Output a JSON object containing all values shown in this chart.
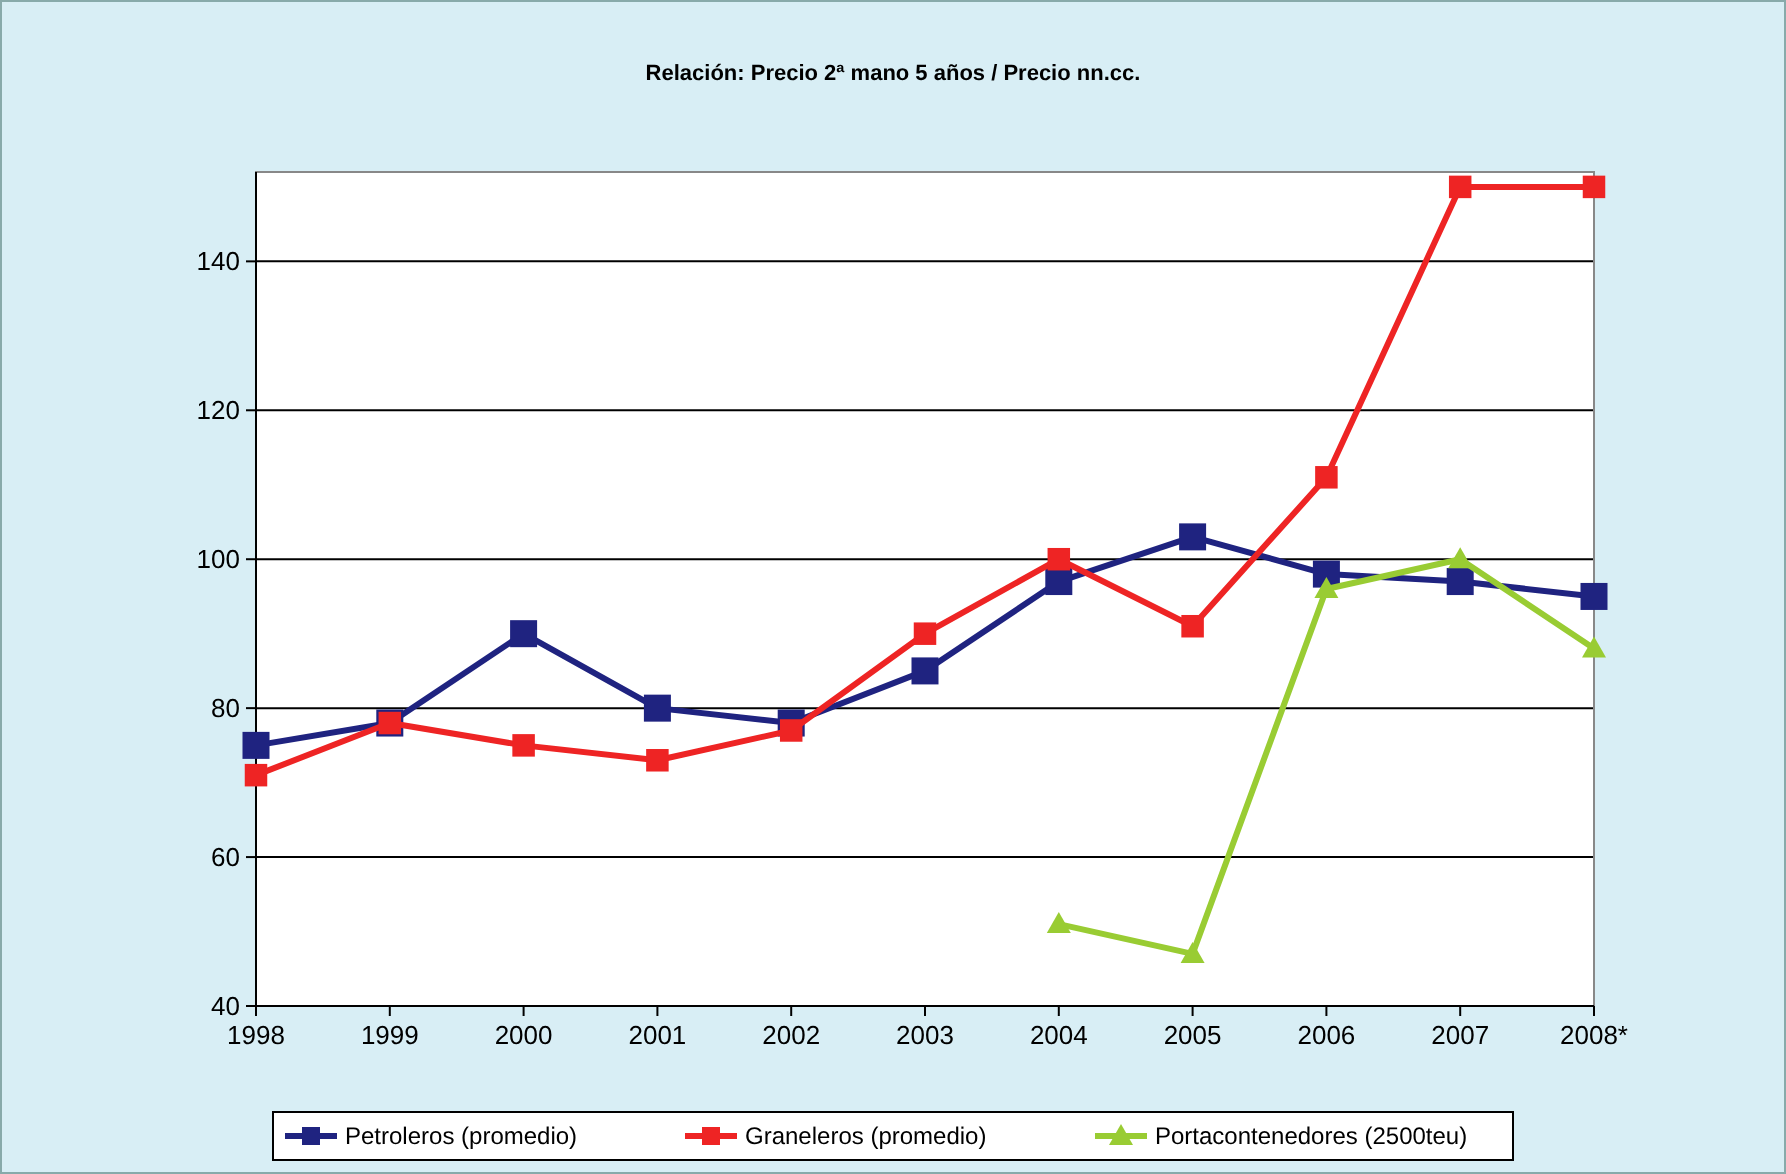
{
  "chart_data": {
    "type": "line",
    "title": "Relación: Precio 2ª mano 5 años / Precio nn.cc.",
    "categories": [
      "1998",
      "1999",
      "2000",
      "2001",
      "2002",
      "2003",
      "2004",
      "2005",
      "2006",
      "2007",
      "2008*"
    ],
    "series": [
      {
        "name": "Petroleros (promedio)",
        "color": "#1f2380",
        "marker": "square",
        "values": [
          75,
          78,
          90,
          80,
          78,
          85,
          97,
          103,
          98,
          97,
          95
        ]
      },
      {
        "name": "Graneleros (promedio)",
        "color": "#ee2424",
        "marker": "square",
        "values": [
          71,
          78,
          75,
          73,
          77,
          90,
          100,
          91,
          111,
          150,
          150
        ]
      },
      {
        "name": "Portacontenedores (2500teu)",
        "color": "#99cc33",
        "marker": "triangle",
        "values": [
          null,
          null,
          null,
          null,
          null,
          null,
          51,
          47,
          96,
          100,
          88
        ]
      }
    ],
    "ylim": [
      40,
      152
    ],
    "yticks": [
      40,
      60,
      80,
      100,
      120,
      140
    ],
    "grid": "y",
    "legend": "bottom",
    "line_style": "solid"
  }
}
